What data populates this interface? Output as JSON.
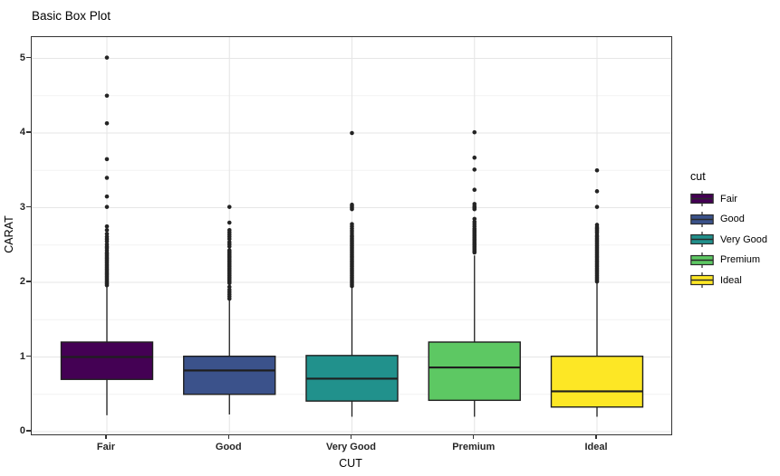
{
  "chart_data": {
    "type": "box",
    "title": "Basic Box Plot",
    "xlabel": "CUT",
    "ylabel": "CARAT",
    "legend_title": "cut",
    "legend_position": "right",
    "ylim": [
      0,
      5.28
    ],
    "yticks": [
      0,
      1,
      2,
      3,
      4,
      5
    ],
    "yminor": [
      0.5,
      1.5,
      2.5,
      3.5,
      4.5
    ],
    "grid": "on",
    "categories": [
      "Fair",
      "Good",
      "Very Good",
      "Premium",
      "Ideal"
    ],
    "series": [
      {
        "name": "Fair",
        "color": "#440154",
        "stats": {
          "whisker_low": 0.22,
          "q1": 0.7,
          "median": 1.0,
          "q3": 1.2,
          "whisker_high": 1.95
        },
        "outliers": [
          1.96,
          1.98,
          2.0,
          2.02,
          2.04,
          2.06,
          2.08,
          2.1,
          2.12,
          2.14,
          2.16,
          2.18,
          2.2,
          2.22,
          2.24,
          2.26,
          2.28,
          2.3,
          2.32,
          2.34,
          2.36,
          2.38,
          2.4,
          2.43,
          2.46,
          2.48,
          2.51,
          2.55,
          2.58,
          2.61,
          2.65,
          2.7,
          2.75,
          3.01,
          3.15,
          3.4,
          3.65,
          4.13,
          4.5,
          5.01
        ]
      },
      {
        "name": "Good",
        "color": "#3b528b",
        "stats": {
          "whisker_low": 0.23,
          "q1": 0.5,
          "median": 0.82,
          "q3": 1.01,
          "whisker_high": 1.76
        },
        "outliers": [
          1.78,
          1.81,
          1.84,
          1.87,
          1.9,
          1.94,
          1.99,
          2.01,
          2.03,
          2.05,
          2.07,
          2.09,
          2.11,
          2.13,
          2.15,
          2.17,
          2.19,
          2.21,
          2.23,
          2.25,
          2.27,
          2.29,
          2.31,
          2.33,
          2.35,
          2.37,
          2.39,
          2.41,
          2.43,
          2.48,
          2.51,
          2.54,
          2.58,
          2.61,
          2.64,
          2.67,
          2.7,
          2.8,
          3.01
        ]
      },
      {
        "name": "Very Good",
        "color": "#21918c",
        "stats": {
          "whisker_low": 0.2,
          "q1": 0.41,
          "median": 0.71,
          "q3": 1.02,
          "whisker_high": 1.93
        },
        "outliers": [
          1.95,
          1.97,
          1.99,
          2.01,
          2.03,
          2.05,
          2.07,
          2.09,
          2.11,
          2.13,
          2.15,
          2.17,
          2.19,
          2.21,
          2.23,
          2.25,
          2.27,
          2.29,
          2.31,
          2.33,
          2.35,
          2.37,
          2.39,
          2.41,
          2.43,
          2.45,
          2.47,
          2.49,
          2.51,
          2.53,
          2.55,
          2.57,
          2.59,
          2.61,
          2.63,
          2.66,
          2.69,
          2.72,
          2.75,
          2.78,
          2.98,
          3.0,
          3.02,
          3.04,
          4.0
        ]
      },
      {
        "name": "Premium",
        "color": "#5dc863",
        "stats": {
          "whisker_low": 0.2,
          "q1": 0.42,
          "median": 0.86,
          "q3": 1.2,
          "whisker_high": 2.36
        },
        "outliers": [
          2.4,
          2.42,
          2.44,
          2.46,
          2.48,
          2.5,
          2.52,
          2.54,
          2.56,
          2.58,
          2.6,
          2.62,
          2.64,
          2.66,
          2.68,
          2.7,
          2.72,
          2.75,
          2.78,
          2.81,
          2.85,
          2.98,
          3.0,
          3.02,
          3.05,
          3.24,
          3.51,
          3.67,
          4.01
        ]
      },
      {
        "name": "Ideal",
        "color": "#fde725",
        "stats": {
          "whisker_low": 0.2,
          "q1": 0.33,
          "median": 0.54,
          "q3": 1.01,
          "whisker_high": 2.0
        },
        "outliers": [
          2.01,
          2.03,
          2.05,
          2.07,
          2.09,
          2.11,
          2.13,
          2.15,
          2.17,
          2.19,
          2.21,
          2.23,
          2.25,
          2.27,
          2.29,
          2.31,
          2.33,
          2.35,
          2.37,
          2.39,
          2.41,
          2.43,
          2.45,
          2.47,
          2.49,
          2.51,
          2.53,
          2.55,
          2.57,
          2.59,
          2.61,
          2.63,
          2.66,
          2.68,
          2.7,
          2.72,
          2.74,
          2.77,
          3.01,
          3.22,
          3.5
        ]
      }
    ],
    "style": {
      "stroke_color": "#1f1f1f",
      "grid_major_color": "#e6e6e6",
      "grid_minor_color": "#f2f2f2",
      "panel_border_color": "#333333"
    }
  }
}
